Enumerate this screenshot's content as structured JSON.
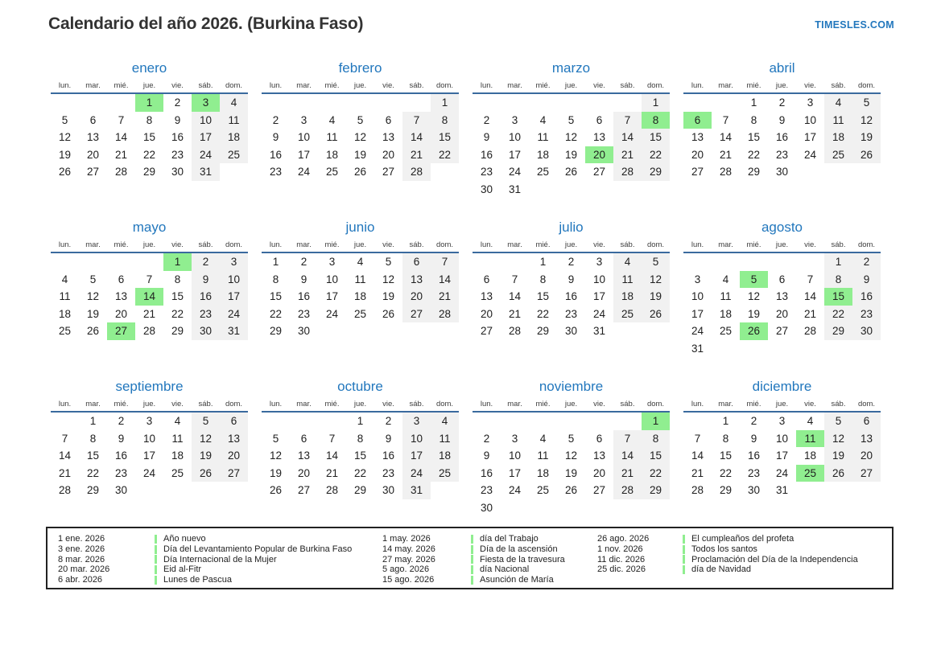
{
  "header": {
    "title": "Calendario del año 2026. (Burkina Faso)",
    "site": "TIMESLES.COM"
  },
  "weekdays": [
    "lun.",
    "mar.",
    "mié.",
    "jue.",
    "vie.",
    "sáb.",
    "dom."
  ],
  "months": [
    {
      "name": "enero",
      "holidays": [
        1,
        3
      ],
      "weeks": [
        [
          null,
          null,
          null,
          1,
          2,
          3,
          4
        ],
        [
          5,
          6,
          7,
          8,
          9,
          10,
          11
        ],
        [
          12,
          13,
          14,
          15,
          16,
          17,
          18
        ],
        [
          19,
          20,
          21,
          22,
          23,
          24,
          25
        ],
        [
          26,
          27,
          28,
          29,
          30,
          31,
          null
        ]
      ]
    },
    {
      "name": "febrero",
      "holidays": [],
      "weeks": [
        [
          null,
          null,
          null,
          null,
          null,
          null,
          1
        ],
        [
          2,
          3,
          4,
          5,
          6,
          7,
          8
        ],
        [
          9,
          10,
          11,
          12,
          13,
          14,
          15
        ],
        [
          16,
          17,
          18,
          19,
          20,
          21,
          22
        ],
        [
          23,
          24,
          25,
          26,
          27,
          28,
          null
        ]
      ]
    },
    {
      "name": "marzo",
      "holidays": [
        8,
        20
      ],
      "weeks": [
        [
          null,
          null,
          null,
          null,
          null,
          null,
          1
        ],
        [
          2,
          3,
          4,
          5,
          6,
          7,
          8
        ],
        [
          9,
          10,
          11,
          12,
          13,
          14,
          15
        ],
        [
          16,
          17,
          18,
          19,
          20,
          21,
          22
        ],
        [
          23,
          24,
          25,
          26,
          27,
          28,
          29
        ],
        [
          30,
          31,
          null,
          null,
          null,
          null,
          null
        ]
      ]
    },
    {
      "name": "abril",
      "holidays": [
        6
      ],
      "weeks": [
        [
          null,
          null,
          1,
          2,
          3,
          4,
          5
        ],
        [
          6,
          7,
          8,
          9,
          10,
          11,
          12
        ],
        [
          13,
          14,
          15,
          16,
          17,
          18,
          19
        ],
        [
          20,
          21,
          22,
          23,
          24,
          25,
          26
        ],
        [
          27,
          28,
          29,
          30,
          null,
          null,
          null
        ]
      ]
    },
    {
      "name": "mayo",
      "holidays": [
        1,
        14,
        27
      ],
      "weeks": [
        [
          null,
          null,
          null,
          null,
          1,
          2,
          3
        ],
        [
          4,
          5,
          6,
          7,
          8,
          9,
          10
        ],
        [
          11,
          12,
          13,
          14,
          15,
          16,
          17
        ],
        [
          18,
          19,
          20,
          21,
          22,
          23,
          24
        ],
        [
          25,
          26,
          27,
          28,
          29,
          30,
          31
        ]
      ]
    },
    {
      "name": "junio",
      "holidays": [],
      "weeks": [
        [
          1,
          2,
          3,
          4,
          5,
          6,
          7
        ],
        [
          8,
          9,
          10,
          11,
          12,
          13,
          14
        ],
        [
          15,
          16,
          17,
          18,
          19,
          20,
          21
        ],
        [
          22,
          23,
          24,
          25,
          26,
          27,
          28
        ],
        [
          29,
          30,
          null,
          null,
          null,
          null,
          null
        ]
      ]
    },
    {
      "name": "julio",
      "holidays": [],
      "weeks": [
        [
          null,
          null,
          1,
          2,
          3,
          4,
          5
        ],
        [
          6,
          7,
          8,
          9,
          10,
          11,
          12
        ],
        [
          13,
          14,
          15,
          16,
          17,
          18,
          19
        ],
        [
          20,
          21,
          22,
          23,
          24,
          25,
          26
        ],
        [
          27,
          28,
          29,
          30,
          31,
          null,
          null
        ]
      ]
    },
    {
      "name": "agosto",
      "holidays": [
        5,
        15,
        26
      ],
      "weeks": [
        [
          null,
          null,
          null,
          null,
          null,
          1,
          2
        ],
        [
          3,
          4,
          5,
          6,
          7,
          8,
          9
        ],
        [
          10,
          11,
          12,
          13,
          14,
          15,
          16
        ],
        [
          17,
          18,
          19,
          20,
          21,
          22,
          23
        ],
        [
          24,
          25,
          26,
          27,
          28,
          29,
          30
        ],
        [
          31,
          null,
          null,
          null,
          null,
          null,
          null
        ]
      ]
    },
    {
      "name": "septiembre",
      "holidays": [],
      "weeks": [
        [
          null,
          1,
          2,
          3,
          4,
          5,
          6
        ],
        [
          7,
          8,
          9,
          10,
          11,
          12,
          13
        ],
        [
          14,
          15,
          16,
          17,
          18,
          19,
          20
        ],
        [
          21,
          22,
          23,
          24,
          25,
          26,
          27
        ],
        [
          28,
          29,
          30,
          null,
          null,
          null,
          null
        ]
      ]
    },
    {
      "name": "octubre",
      "holidays": [],
      "weeks": [
        [
          null,
          null,
          null,
          1,
          2,
          3,
          4
        ],
        [
          5,
          6,
          7,
          8,
          9,
          10,
          11
        ],
        [
          12,
          13,
          14,
          15,
          16,
          17,
          18
        ],
        [
          19,
          20,
          21,
          22,
          23,
          24,
          25
        ],
        [
          26,
          27,
          28,
          29,
          30,
          31,
          null
        ]
      ]
    },
    {
      "name": "noviembre",
      "holidays": [
        1
      ],
      "weeks": [
        [
          null,
          null,
          null,
          null,
          null,
          null,
          1
        ],
        [
          2,
          3,
          4,
          5,
          6,
          7,
          8
        ],
        [
          9,
          10,
          11,
          12,
          13,
          14,
          15
        ],
        [
          16,
          17,
          18,
          19,
          20,
          21,
          22
        ],
        [
          23,
          24,
          25,
          26,
          27,
          28,
          29
        ],
        [
          30,
          null,
          null,
          null,
          null,
          null,
          null
        ]
      ]
    },
    {
      "name": "diciembre",
      "holidays": [
        11,
        25
      ],
      "weeks": [
        [
          null,
          1,
          2,
          3,
          4,
          5,
          6
        ],
        [
          7,
          8,
          9,
          10,
          11,
          12,
          13
        ],
        [
          14,
          15,
          16,
          17,
          18,
          19,
          20
        ],
        [
          21,
          22,
          23,
          24,
          25,
          26,
          27
        ],
        [
          28,
          29,
          30,
          31,
          null,
          null,
          null
        ]
      ]
    }
  ],
  "legend": {
    "groups": [
      [
        {
          "date": "1 ene. 2026",
          "name": "Año nuevo"
        },
        {
          "date": "3 ene. 2026",
          "name": "Día del Levantamiento Popular de Burkina Faso"
        },
        {
          "date": "8 mar. 2026",
          "name": "Día Internacional de la Mujer"
        },
        {
          "date": "20 mar. 2026",
          "name": "Eid al-Fitr"
        },
        {
          "date": "6 abr. 2026",
          "name": "Lunes de Pascua"
        }
      ],
      [
        {
          "date": "1 may. 2026",
          "name": "día del Trabajo"
        },
        {
          "date": "14 may. 2026",
          "name": "Día de la ascensión"
        },
        {
          "date": "27 may. 2026",
          "name": "Fiesta de la travesura"
        },
        {
          "date": "5 ago. 2026",
          "name": "día Nacional"
        },
        {
          "date": "15 ago. 2026",
          "name": "Asunción de María"
        }
      ],
      [
        {
          "date": "26 ago. 2026",
          "name": "El cumpleaños del profeta"
        },
        {
          "date": "1 nov. 2026",
          "name": "Todos los santos"
        },
        {
          "date": "11 dic. 2026",
          "name": "Proclamación del Día de la Independencia"
        },
        {
          "date": "25 dic. 2026",
          "name": "día de Navidad"
        }
      ]
    ]
  },
  "colors": {
    "accent": "#2277bd",
    "header_line": "#3a6a9e",
    "holiday": "#90ee90",
    "weekend": "#f1f1f1"
  }
}
